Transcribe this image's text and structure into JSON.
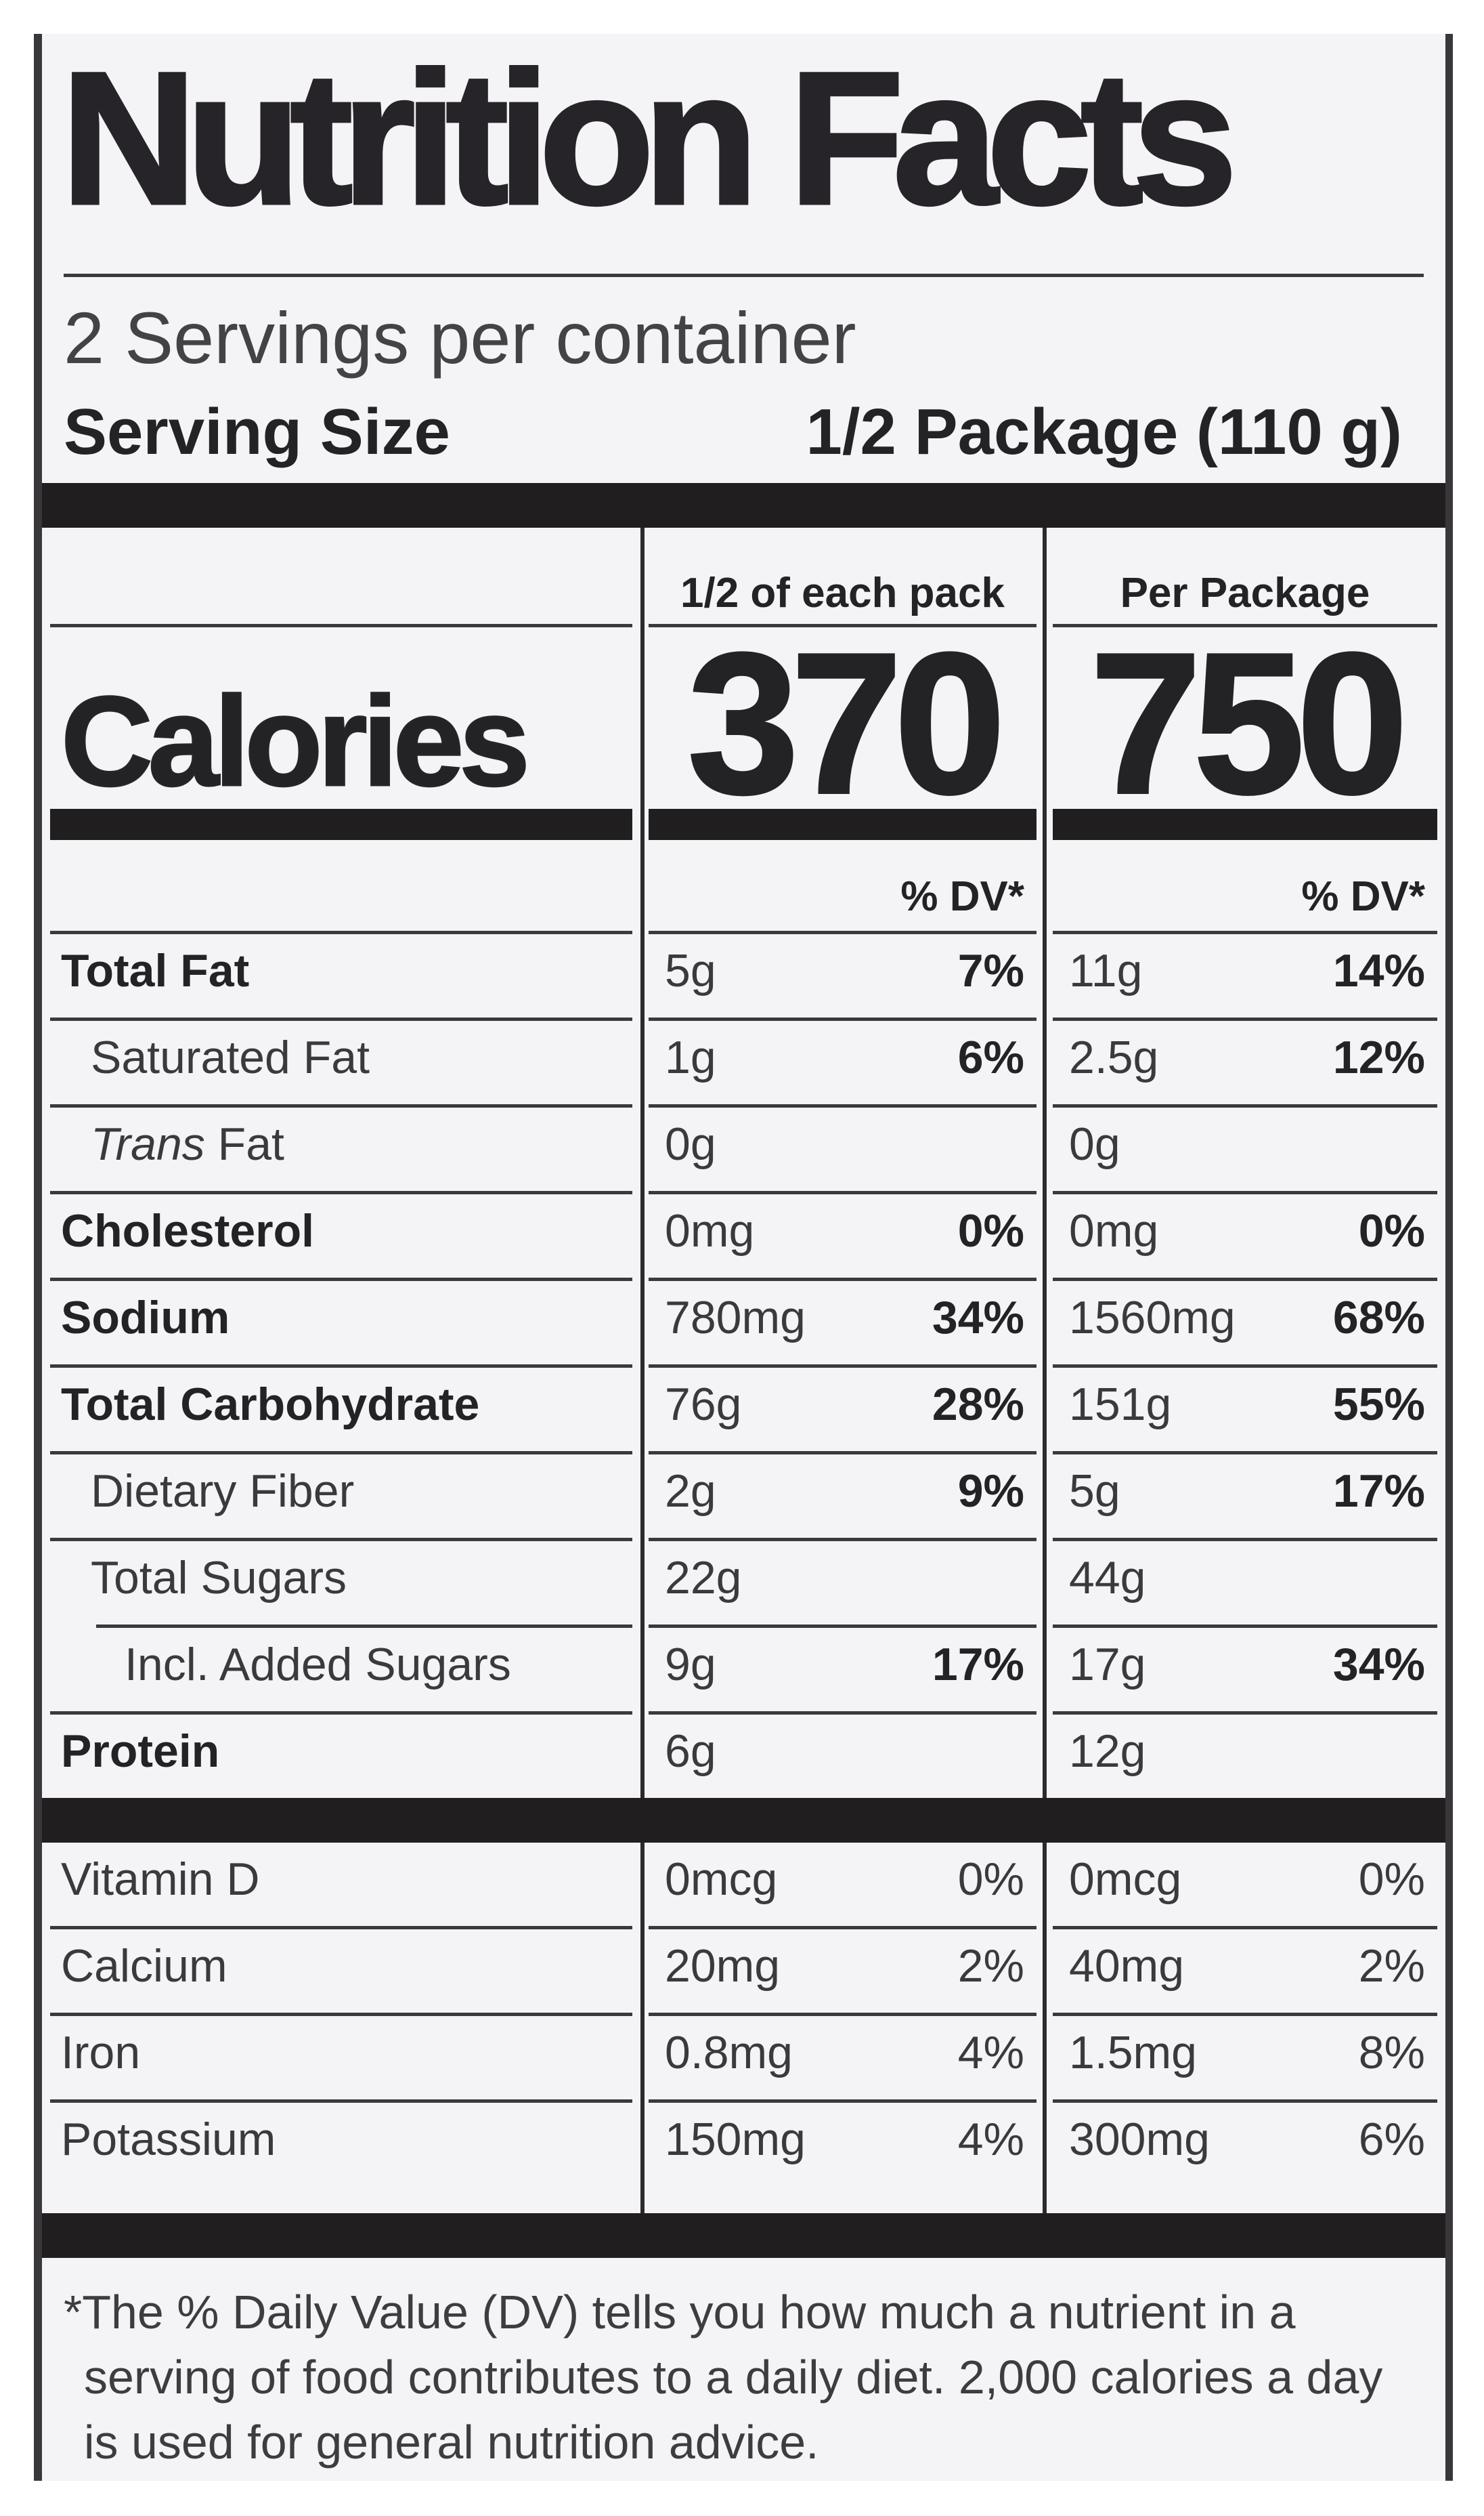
{
  "label": {
    "title": "Nutrition Facts",
    "servings_per_container": "2 Servings per container",
    "serving_size_label": "Serving Size",
    "serving_size_value": "1/2 Package (110 g)",
    "columns": {
      "per_serving_header": "1/2 of each pack",
      "per_package_header": "Per Package"
    },
    "calories": {
      "label": "Calories",
      "per_serving": "370",
      "per_package": "750"
    },
    "percent_dv_header": "% DV*",
    "nutrients": [
      {
        "name": "Total Fat",
        "per_serving_amount": "5g",
        "per_serving_dv": "7%",
        "per_package_amount": "11g",
        "per_package_dv": "14%"
      },
      {
        "name": "Saturated Fat",
        "per_serving_amount": "1g",
        "per_serving_dv": "6%",
        "per_package_amount": "2.5g",
        "per_package_dv": "12%"
      },
      {
        "name_italic": "Trans",
        "name": " Fat",
        "per_serving_amount": "0g",
        "per_serving_dv": "",
        "per_package_amount": "0g",
        "per_package_dv": ""
      },
      {
        "name": "Cholesterol",
        "per_serving_amount": "0mg",
        "per_serving_dv": "0%",
        "per_package_amount": "0mg",
        "per_package_dv": "0%"
      },
      {
        "name": "Sodium",
        "per_serving_amount": "780mg",
        "per_serving_dv": "34%",
        "per_package_amount": "1560mg",
        "per_package_dv": "68%"
      },
      {
        "name": "Total Carbohydrate",
        "per_serving_amount": "76g",
        "per_serving_dv": "28%",
        "per_package_amount": "151g",
        "per_package_dv": "55%"
      },
      {
        "name": "Dietary Fiber",
        "per_serving_amount": "2g",
        "per_serving_dv": "9%",
        "per_package_amount": "5g",
        "per_package_dv": "17%"
      },
      {
        "name": "Total Sugars",
        "per_serving_amount": "22g",
        "per_serving_dv": "",
        "per_package_amount": "44g",
        "per_package_dv": ""
      },
      {
        "name": "Incl. Added Sugars",
        "per_serving_amount": "9g",
        "per_serving_dv": "17%",
        "per_package_amount": "17g",
        "per_package_dv": "34%"
      },
      {
        "name": "Protein",
        "per_serving_amount": "6g",
        "per_serving_dv": "",
        "per_package_amount": "12g",
        "per_package_dv": ""
      }
    ],
    "vitamins": [
      {
        "name": "Vitamin D",
        "per_serving_amount": "0mcg",
        "per_serving_dv": "0%",
        "per_package_amount": "0mcg",
        "per_package_dv": "0%"
      },
      {
        "name": "Calcium",
        "per_serving_amount": "20mg",
        "per_serving_dv": "2%",
        "per_package_amount": "40mg",
        "per_package_dv": "2%"
      },
      {
        "name": "Iron",
        "per_serving_amount": "0.8mg",
        "per_serving_dv": "4%",
        "per_package_amount": "1.5mg",
        "per_package_dv": "8%"
      },
      {
        "name": "Potassium",
        "per_serving_amount": "150mg",
        "per_serving_dv": "4%",
        "per_package_amount": "300mg",
        "per_package_dv": "6%"
      }
    ],
    "footnote": "*The % Daily Value (DV) tells you how much a nutrient in a serving of food contributes to a daily diet. 2,000 calories a day is used for general nutrition advice.",
    "colors": {
      "label_background": "#f4f3f6",
      "ink": "#232225",
      "bar": "#201e1f"
    }
  }
}
